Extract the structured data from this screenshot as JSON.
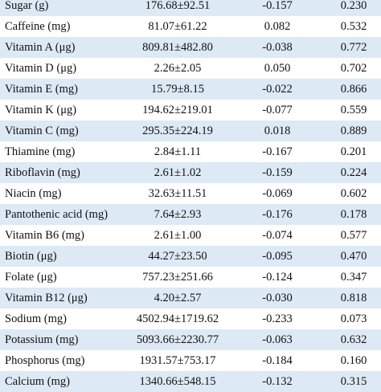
{
  "rows": [
    {
      "name": "Sugar (g)",
      "mean_sd": "176.68±92.51",
      "r": "-0.157",
      "p": "0.230"
    },
    {
      "name": "Caffeine (mg)",
      "mean_sd": "81.07±61.22",
      "r": "0.082",
      "p": "0.532"
    },
    {
      "name": "Vitamin A (μg)",
      "mean_sd": "809.81±482.80",
      "r": "-0.038",
      "p": "0.772"
    },
    {
      "name": "Vitamin D (μg)",
      "mean_sd": "2.26±2.05",
      "r": "0.050",
      "p": "0.702"
    },
    {
      "name": "Vitamin E (mg)",
      "mean_sd": "15.79±8.15",
      "r": "-0.022",
      "p": "0.866"
    },
    {
      "name": "Vitamin K (μg)",
      "mean_sd": "194.62±219.01",
      "r": "-0.077",
      "p": "0.559"
    },
    {
      "name": "Vitamin C (mg)",
      "mean_sd": "295.35±224.19",
      "r": "0.018",
      "p": "0.889"
    },
    {
      "name": "Thiamine (mg)",
      "mean_sd": "2.84±1.11",
      "r": "-0.167",
      "p": "0.201"
    },
    {
      "name": "Riboflavin (mg)",
      "mean_sd": "2.61±1.02",
      "r": "-0.159",
      "p": "0.224"
    },
    {
      "name": "Niacin (mg)",
      "mean_sd": "32.63±11.51",
      "r": "-0.069",
      "p": "0.602"
    },
    {
      "name": "Pantothenic acid (mg)",
      "mean_sd": "7.64±2.93",
      "r": "-0.176",
      "p": "0.178"
    },
    {
      "name": "Vitamin B6 (mg)",
      "mean_sd": "2.61±1.00",
      "r": "-0.074",
      "p": "0.577"
    },
    {
      "name": "Biotin (μg)",
      "mean_sd": "44.27±23.50",
      "r": "-0.095",
      "p": "0.470"
    },
    {
      "name": "Folate (μg)",
      "mean_sd": "757.23±251.66",
      "r": "-0.124",
      "p": "0.347"
    },
    {
      "name": "Vitamin B12 (μg)",
      "mean_sd": "4.20±2.57",
      "r": "-0.030",
      "p": "0.818"
    },
    {
      "name": "Sodium (mg)",
      "mean_sd": "4502.94±1719.62",
      "r": "-0.233",
      "p": "0.073"
    },
    {
      "name": "Potassium (mg)",
      "mean_sd": "5093.66±2230.77",
      "r": "-0.063",
      "p": "0.632"
    },
    {
      "name": "Phosphorus (mg)",
      "mean_sd": "1931.57±753.17",
      "r": "-0.184",
      "p": "0.160"
    },
    {
      "name": "Calcium (mg)",
      "mean_sd": "1340.66±548.15",
      "r": "-0.132",
      "p": "0.315"
    }
  ]
}
